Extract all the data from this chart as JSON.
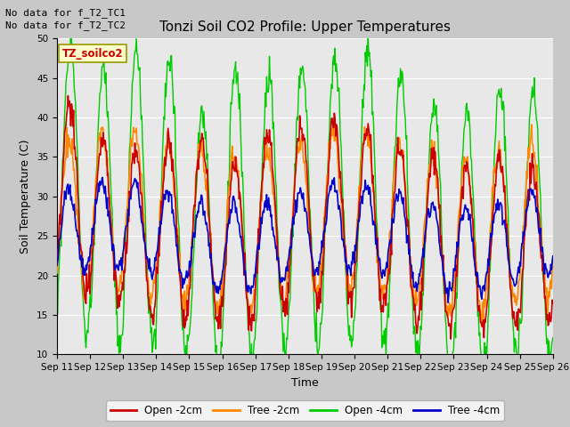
{
  "title": "Tonzi Soil CO2 Profile: Upper Temperatures",
  "ylabel": "Soil Temperature (C)",
  "xlabel": "Time",
  "ylim": [
    10,
    50
  ],
  "xlim": [
    0,
    15
  ],
  "annotations": [
    "No data for f_T2_TC1",
    "No data for f_T2_TC2"
  ],
  "file_label": "TZ_soilco2",
  "xtick_labels": [
    "Sep 11",
    "Sep 12",
    "Sep 13",
    "Sep 14",
    "Sep 15",
    "Sep 16",
    "Sep 17",
    "Sep 18",
    "Sep 19",
    "Sep 20",
    "Sep 21",
    "Sep 22",
    "Sep 23",
    "Sep 24",
    "Sep 25",
    "Sep 26"
  ],
  "ytick_values": [
    10,
    15,
    20,
    25,
    30,
    35,
    40,
    45,
    50
  ],
  "legend_entries": [
    "Open -2cm",
    "Tree -2cm",
    "Open -4cm",
    "Tree -4cm"
  ],
  "legend_colors": [
    "#cc0000",
    "#ff8800",
    "#00cc00",
    "#0000cc"
  ],
  "bg_color": "#e8e8e8",
  "fig_color": "#c8c8c8",
  "title_fontsize": 11,
  "label_fontsize": 9,
  "tick_fontsize": 7.5,
  "annotation_fontsize": 8
}
